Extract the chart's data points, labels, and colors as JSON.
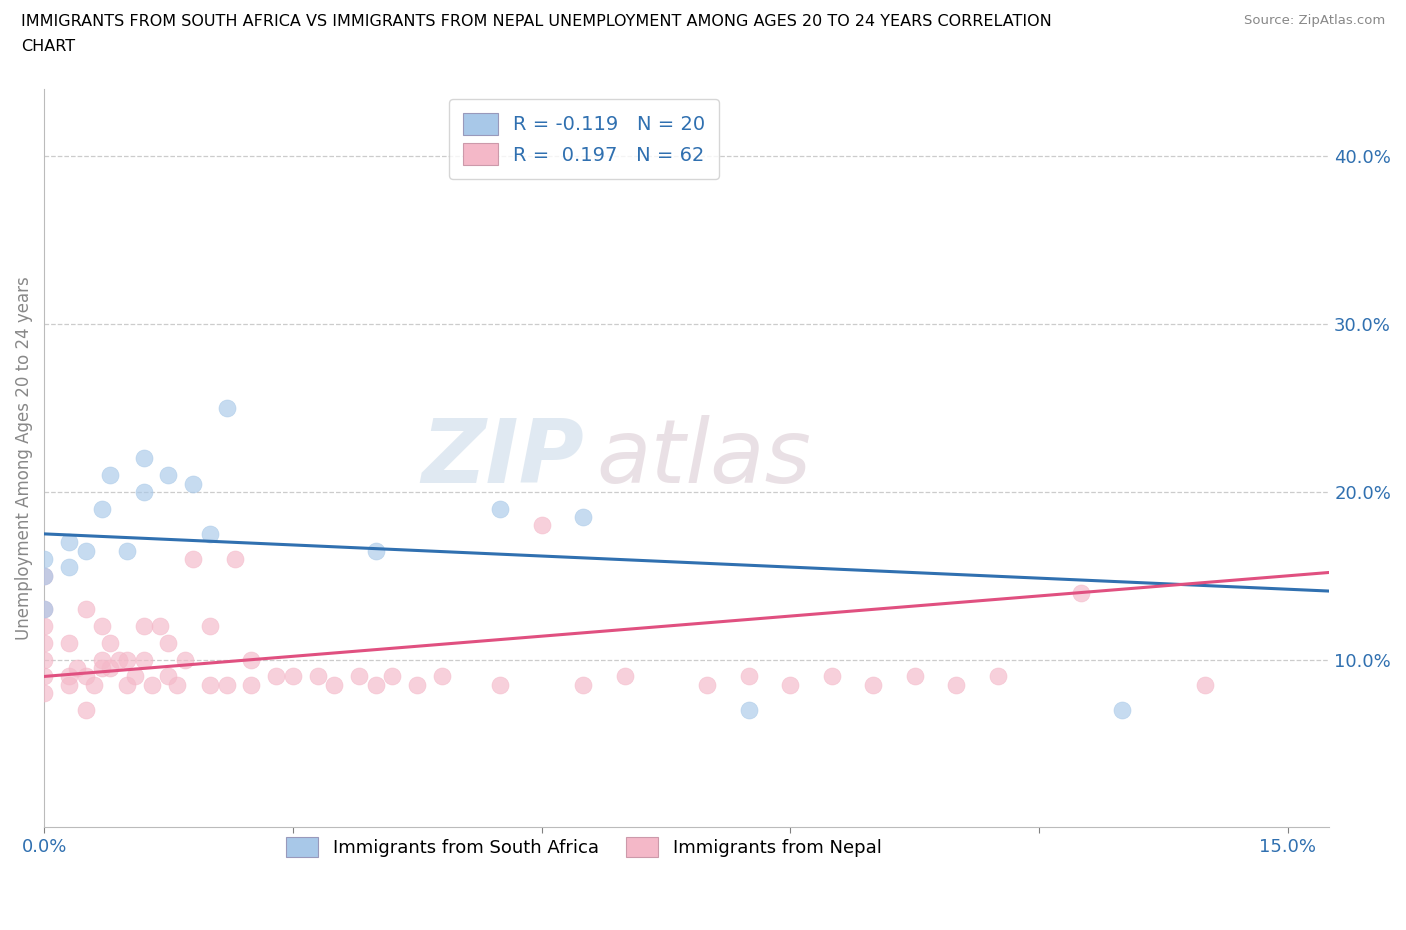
{
  "title_line1": "IMMIGRANTS FROM SOUTH AFRICA VS IMMIGRANTS FROM NEPAL UNEMPLOYMENT AMONG AGES 20 TO 24 YEARS CORRELATION",
  "title_line2": "CHART",
  "source": "Source: ZipAtlas.com",
  "ylabel": "Unemployment Among Ages 20 to 24 years",
  "xlim": [
    0.0,
    0.155
  ],
  "ylim": [
    0.0,
    0.44
  ],
  "r_sa": -0.119,
  "n_sa": 20,
  "r_np": 0.197,
  "n_np": 62,
  "color_sa": "#a8c8e8",
  "color_np": "#f4b8c8",
  "line_color_sa": "#3070b0",
  "line_color_np": "#e05080",
  "watermark_zip": "ZIP",
  "watermark_atlas": "atlas",
  "legend_label_sa": "Immigrants from South Africa",
  "legend_label_np": "Immigrants from Nepal",
  "sa_x": [
    0.0,
    0.0,
    0.0,
    0.003,
    0.003,
    0.005,
    0.007,
    0.008,
    0.01,
    0.012,
    0.012,
    0.015,
    0.018,
    0.02,
    0.022,
    0.04,
    0.055,
    0.065,
    0.085,
    0.13
  ],
  "sa_y": [
    0.13,
    0.15,
    0.16,
    0.155,
    0.17,
    0.165,
    0.19,
    0.21,
    0.165,
    0.2,
    0.22,
    0.21,
    0.205,
    0.175,
    0.25,
    0.165,
    0.19,
    0.185,
    0.07,
    0.07
  ],
  "np_x": [
    0.0,
    0.0,
    0.0,
    0.0,
    0.0,
    0.0,
    0.0,
    0.003,
    0.003,
    0.003,
    0.004,
    0.005,
    0.005,
    0.005,
    0.006,
    0.007,
    0.007,
    0.007,
    0.008,
    0.008,
    0.009,
    0.01,
    0.01,
    0.011,
    0.012,
    0.012,
    0.013,
    0.014,
    0.015,
    0.015,
    0.016,
    0.017,
    0.018,
    0.02,
    0.02,
    0.022,
    0.023,
    0.025,
    0.025,
    0.028,
    0.03,
    0.033,
    0.035,
    0.038,
    0.04,
    0.042,
    0.045,
    0.048,
    0.055,
    0.06,
    0.065,
    0.07,
    0.08,
    0.085,
    0.09,
    0.095,
    0.1,
    0.105,
    0.11,
    0.115,
    0.125,
    0.14
  ],
  "np_y": [
    0.08,
    0.09,
    0.1,
    0.11,
    0.12,
    0.13,
    0.15,
    0.085,
    0.09,
    0.11,
    0.095,
    0.07,
    0.09,
    0.13,
    0.085,
    0.095,
    0.1,
    0.12,
    0.095,
    0.11,
    0.1,
    0.085,
    0.1,
    0.09,
    0.1,
    0.12,
    0.085,
    0.12,
    0.09,
    0.11,
    0.085,
    0.1,
    0.16,
    0.085,
    0.12,
    0.085,
    0.16,
    0.085,
    0.1,
    0.09,
    0.09,
    0.09,
    0.085,
    0.09,
    0.085,
    0.09,
    0.085,
    0.09,
    0.085,
    0.18,
    0.085,
    0.09,
    0.085,
    0.09,
    0.085,
    0.09,
    0.085,
    0.09,
    0.085,
    0.09,
    0.14,
    0.085
  ]
}
